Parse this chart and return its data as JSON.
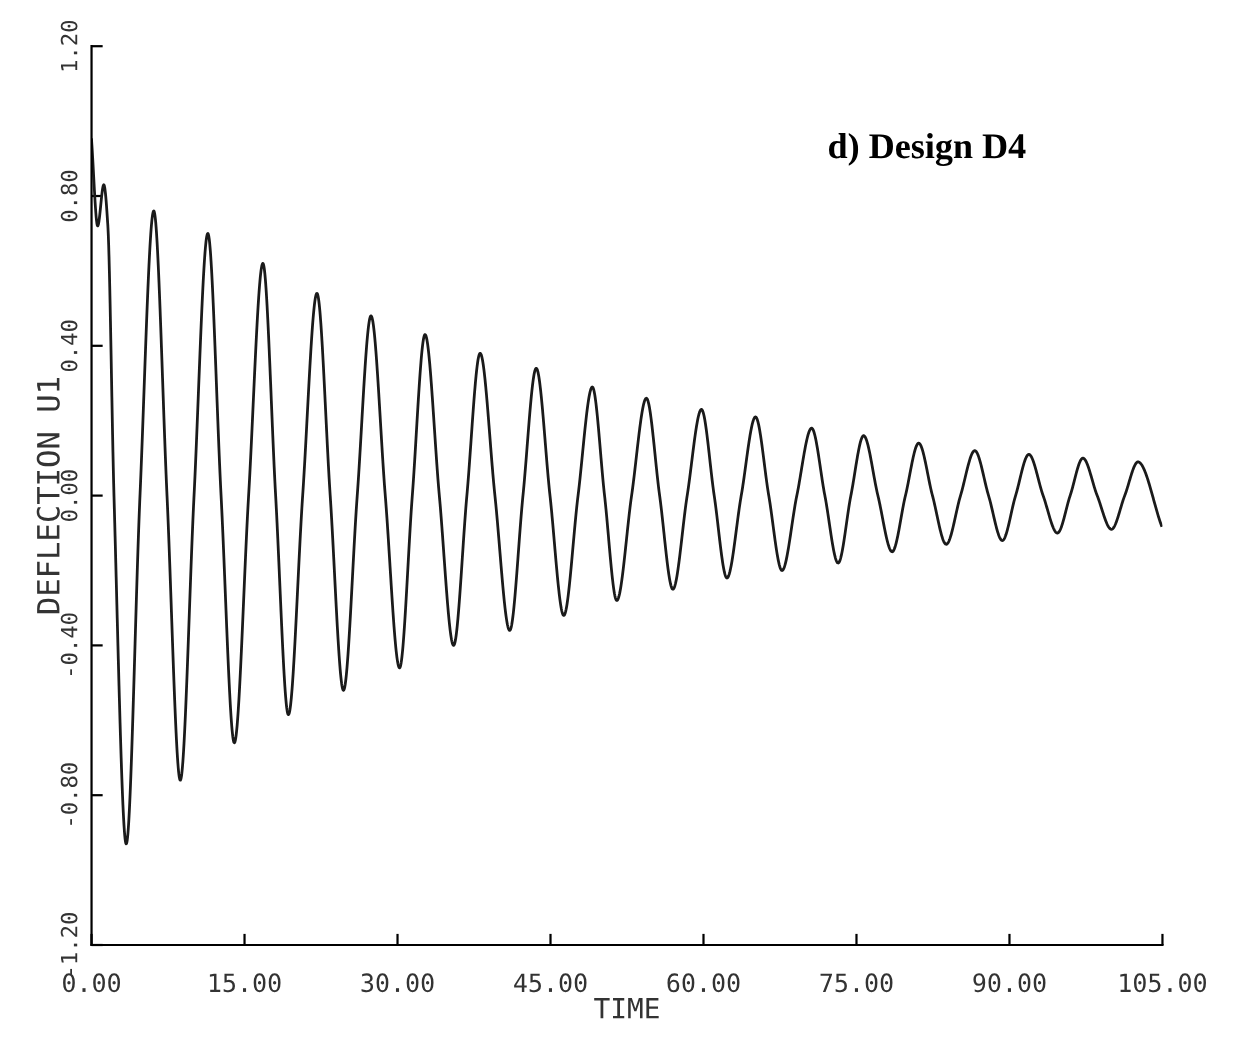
{
  "chart_data": {
    "type": "line",
    "title": "d) Design D4",
    "xlabel": "TIME",
    "ylabel": "DEFLECTION U1",
    "x": [
      0,
      0.6,
      1.2,
      1.6,
      2.2,
      3.4,
      4.75,
      6.1,
      7.4,
      8.7,
      10.05,
      11.4,
      12.7,
      14.0,
      15.4,
      16.8,
      18.05,
      19.3,
      20.7,
      22.1,
      23.4,
      24.7,
      26.05,
      27.4,
      28.8,
      30.2,
      31.45,
      32.7,
      34.1,
      35.5,
      36.8,
      38.1,
      39.55,
      41.0,
      42.3,
      43.6,
      44.95,
      46.3,
      47.7,
      49.1,
      50.3,
      51.5,
      52.95,
      54.4,
      55.7,
      57.0,
      58.4,
      59.8,
      61.05,
      62.3,
      63.7,
      65.1,
      66.4,
      67.7,
      69.15,
      70.6,
      71.9,
      73.2,
      74.45,
      75.7,
      77.1,
      78.5,
      79.8,
      81.1,
      82.45,
      83.8,
      85.2,
      86.6,
      87.95,
      89.3,
      90.6,
      91.9,
      93.3,
      94.7,
      95.95,
      97.2,
      98.6,
      100.0,
      101.3,
      102.6,
      104.9
    ],
    "series": [
      {
        "color": "#1a1a1a",
        "values": [
          0.95,
          0.72,
          0.83,
          0.72,
          0,
          -0.93,
          0,
          0.76,
          0,
          -0.76,
          0,
          0.7,
          0,
          -0.66,
          0,
          0.62,
          0,
          -0.585,
          0,
          0.54,
          0,
          -0.52,
          0,
          0.48,
          0,
          -0.46,
          0,
          0.43,
          0,
          -0.4,
          0,
          0.38,
          0,
          -0.36,
          0,
          0.34,
          0,
          -0.32,
          0,
          0.29,
          0,
          -0.28,
          0,
          0.26,
          0,
          -0.25,
          0,
          0.23,
          0,
          -0.22,
          0,
          0.21,
          0,
          -0.2,
          0,
          0.18,
          0,
          -0.18,
          0,
          0.16,
          0,
          -0.15,
          0,
          0.14,
          0,
          -0.13,
          0,
          0.12,
          0,
          -0.12,
          0,
          0.11,
          0,
          -0.1,
          0,
          0.1,
          0,
          -0.09,
          0,
          0.09,
          -0.08
        ]
      }
    ],
    "xlim": [
      0,
      105
    ],
    "xticks": [
      {
        "value": 0,
        "label": "0.00"
      },
      {
        "value": 15,
        "label": "15.00"
      },
      {
        "value": 30,
        "label": "30.00"
      },
      {
        "value": 45,
        "label": "45.00"
      },
      {
        "value": 60,
        "label": "60.00"
      },
      {
        "value": 75,
        "label": "75.00"
      },
      {
        "value": 90,
        "label": "90.00"
      },
      {
        "value": 105,
        "label": "105.00"
      }
    ],
    "ylim": [
      -1.2,
      1.2
    ],
    "yticks": [
      {
        "value": -1.2,
        "label": "-1.20"
      },
      {
        "value": -0.8,
        "label": "-0.80"
      },
      {
        "value": -0.4,
        "label": "-0.40"
      },
      {
        "value": 0,
        "label": "0.00"
      },
      {
        "value": 0.4,
        "label": "0.40"
      },
      {
        "value": 0.8,
        "label": "0.80"
      },
      {
        "value": 1.2,
        "label": "1.20"
      }
    ],
    "grid": false,
    "legend": false,
    "marker": "none",
    "line_style": "solid"
  }
}
